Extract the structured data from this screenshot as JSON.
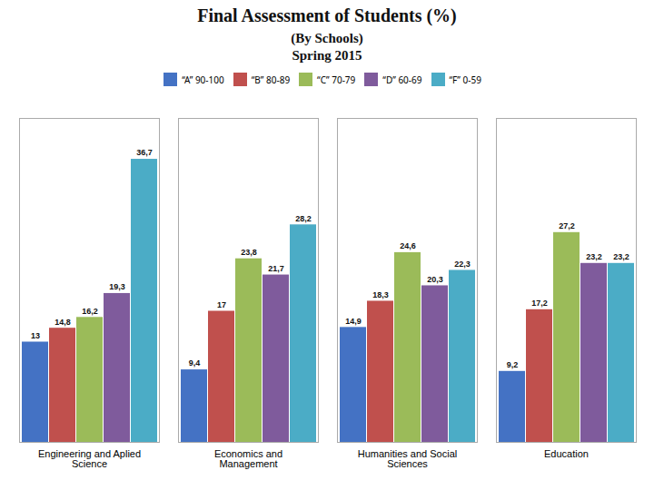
{
  "chart_data": {
    "type": "bar",
    "title": "Final Assessment of Students  (%)",
    "subtitle": "(By Schools)\nSpring 2015",
    "categories": [
      "Engineering and Aplied\nScience",
      "Economics and\nManagement",
      "Humanities and Social\nSciences",
      "Education"
    ],
    "series": [
      {
        "name": "“A” 90-100",
        "color": "#4472C4",
        "values": [
          13,
          9.4,
          14.9,
          9.2
        ],
        "value_labels": [
          "13",
          "9,4",
          "14,9",
          "9,2"
        ]
      },
      {
        "name": "“B” 80-89",
        "color": "#C0504D",
        "values": [
          14.8,
          17,
          18.3,
          17.2
        ],
        "value_labels": [
          "14,8",
          "17",
          "18,3",
          "17,2"
        ]
      },
      {
        "name": "“C” 70-79",
        "color": "#9BBB59",
        "values": [
          16.2,
          23.8,
          24.6,
          27.2
        ],
        "value_labels": [
          "16,2",
          "23,8",
          "24,6",
          "27,2"
        ]
      },
      {
        "name": "“D” 60-69",
        "color": "#7F5B9C",
        "values": [
          19.3,
          21.7,
          20.3,
          23.2
        ],
        "value_labels": [
          "19,3",
          "21,7",
          "20,3",
          "23,2"
        ]
      },
      {
        "name": "“F” 0-59",
        "color": "#4BACC6",
        "values": [
          36.7,
          28.2,
          22.3,
          23.2
        ],
        "value_labels": [
          "36,7",
          "28,2",
          "22,3",
          "23,2"
        ]
      }
    ],
    "ylim": [
      0,
      42
    ],
    "tick_labels": "x",
    "data_labels": true,
    "legend": "top"
  }
}
